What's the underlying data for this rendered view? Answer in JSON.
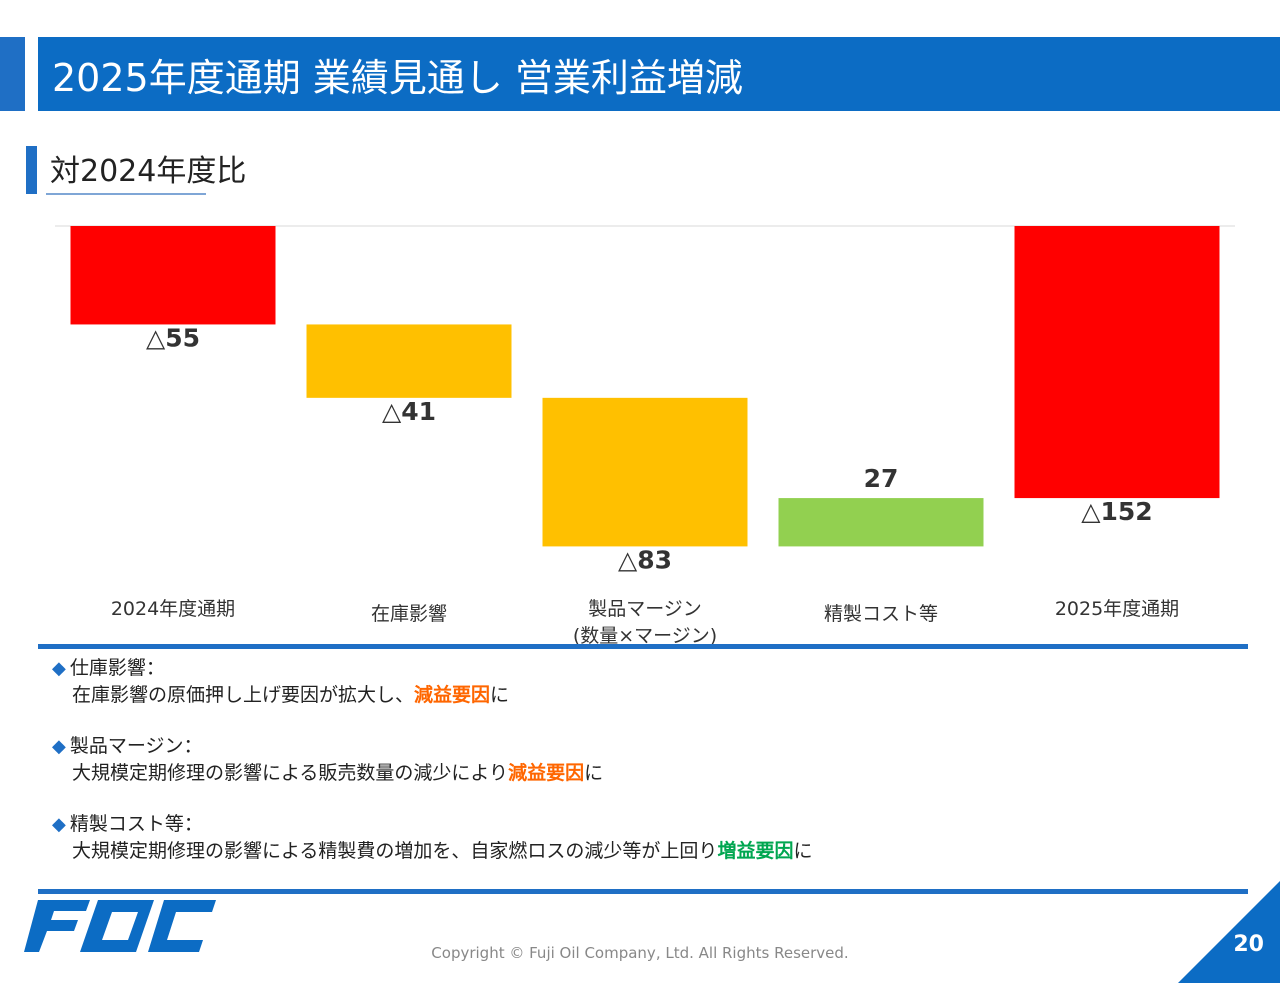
{
  "header": {
    "title": "2025年度通期 業績見通し 営業利益増減"
  },
  "subheader": {
    "title": "対2024年度比"
  },
  "chart_data": {
    "type": "waterfall",
    "categories": [
      "2024年度通期",
      "在庫影響",
      "製品マージン\n(数量×マージン)",
      "精製コスト等",
      "2025年度通期"
    ],
    "values": [
      -55,
      -41,
      -83,
      27,
      -152
    ],
    "value_labels": [
      "△55",
      "△41",
      "△83",
      "27",
      "△152"
    ],
    "measure": [
      "absolute",
      "relative",
      "relative",
      "relative",
      "total"
    ],
    "colors": [
      "#ff0000",
      "#ffc000",
      "#ffc000",
      "#92d050",
      "#ff0000"
    ],
    "grid": false,
    "legend": "none"
  },
  "notes": [
    {
      "heading": "仕庫影響：",
      "pre": "在庫影響の原価押し上げ要因が拡大し、",
      "hl": "減益要因",
      "hl_type": "decrease",
      "post": "に"
    },
    {
      "heading": "製品マージン：",
      "pre": "大規模定期修理の影響による販売数量の減少により",
      "hl": "減益要因",
      "hl_type": "decrease",
      "post": "に"
    },
    {
      "heading": "精製コスト等：",
      "pre": "大規模定期修理の影響による精製費の増加を、自家燃ロスの減少等が上回り",
      "hl": "増益要因",
      "hl_type": "increase",
      "post": "に"
    }
  ],
  "footer": {
    "copyright": "Copyright © Fuji Oil Company, Ltd. All Rights Reserved.",
    "page_number": "20",
    "logo_text": "FOC"
  },
  "theme": {
    "primary_blue": "#0c6cc4",
    "decrease_color": "#ff6600",
    "increase_color": "#00a650"
  }
}
